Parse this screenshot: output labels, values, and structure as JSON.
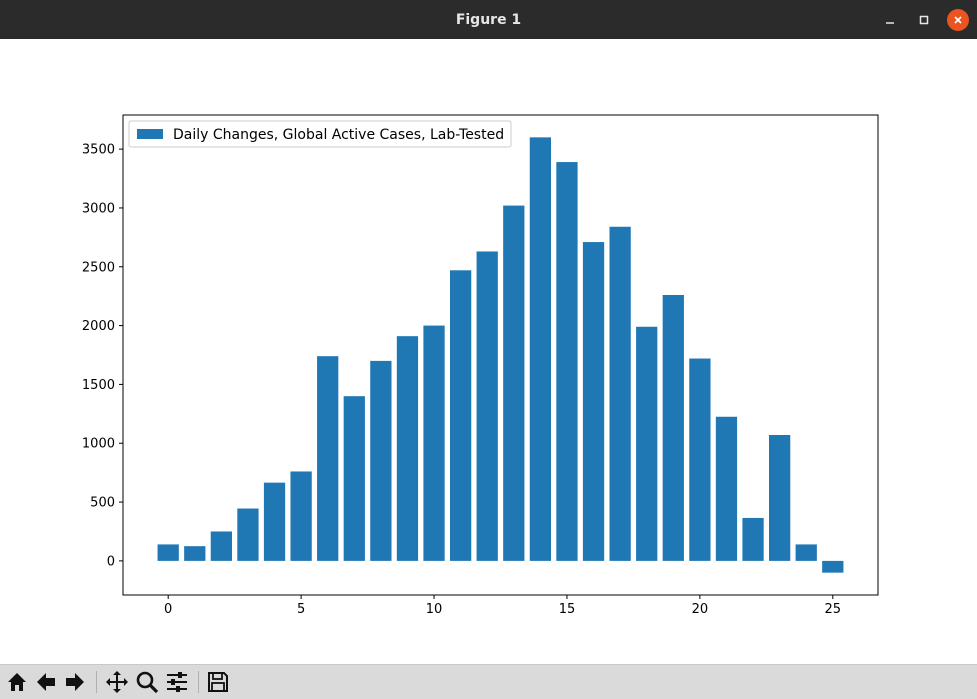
{
  "window": {
    "title": "Figure 1",
    "minimize_icon": "minimize-icon",
    "maximize_icon": "maximize-icon",
    "close_icon": "close-icon"
  },
  "toolbar": {
    "tools": [
      {
        "name": "home-button",
        "icon": "home-icon"
      },
      {
        "name": "back-button",
        "icon": "arrow-left-icon"
      },
      {
        "name": "forward-button",
        "icon": "arrow-right-icon"
      },
      {
        "name": "pan-button",
        "icon": "move-icon"
      },
      {
        "name": "zoom-button",
        "icon": "magnifier-icon"
      },
      {
        "name": "configure-subplots-button",
        "icon": "sliders-icon"
      },
      {
        "name": "save-button",
        "icon": "floppy-disk-icon"
      }
    ]
  },
  "chart_data": {
    "type": "bar",
    "title": "",
    "xlabel": "",
    "ylabel": "",
    "x": [
      0,
      1,
      2,
      3,
      4,
      5,
      6,
      7,
      8,
      9,
      10,
      11,
      12,
      13,
      14,
      15,
      16,
      17,
      18,
      19,
      20,
      21,
      22,
      23,
      24,
      25
    ],
    "series": [
      {
        "name": "Daily Changes, Global Active Cases, Lab-Tested",
        "color": "#1f77b4",
        "values": [
          140,
          125,
          250,
          445,
          665,
          760,
          1740,
          1400,
          1700,
          1910,
          2000,
          2470,
          2630,
          3020,
          3600,
          3390,
          2710,
          2840,
          1990,
          2260,
          1720,
          1225,
          365,
          1070,
          140,
          -100
        ]
      }
    ],
    "xlim": [
      -1.7,
      26.7
    ],
    "ylim": [
      -290,
      3790
    ],
    "xticks": [
      0,
      5,
      10,
      15,
      20,
      25
    ],
    "yticks": [
      0,
      500,
      1000,
      1500,
      2000,
      2500,
      3000,
      3500
    ],
    "grid": false,
    "legend": "top-left"
  }
}
